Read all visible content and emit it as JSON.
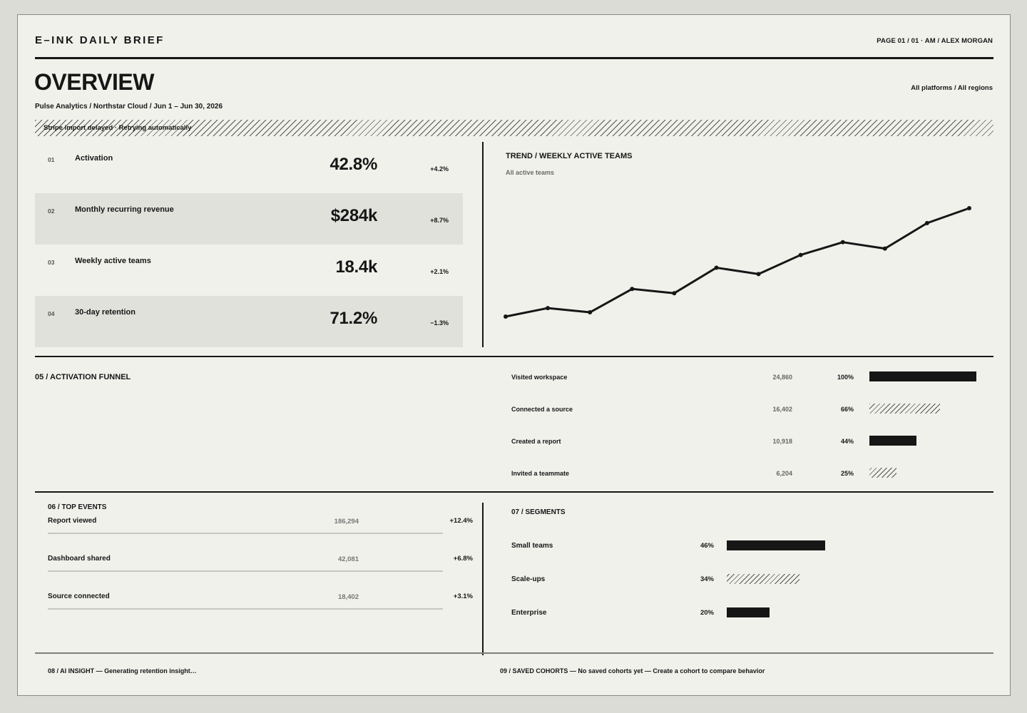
{
  "header": {
    "brand": "E–INK DAILY BRIEF",
    "page_meta": "PAGE 01 / 01 · AM / ALEX MORGAN",
    "title": "OVERVIEW",
    "subtitle": "Pulse Analytics / Northstar Cloud / Jun 1 – Jun 30, 2026",
    "scope": "All platforms / All regions"
  },
  "alert": {
    "text": "Stripe import delayed · Retrying automatically"
  },
  "kpis": [
    {
      "index": "01",
      "name": "Activation",
      "value": "42.8%",
      "delta": "+4.2%"
    },
    {
      "index": "02",
      "name": "Monthly recurring revenue",
      "value": "$284k",
      "delta": "+8.7%"
    },
    {
      "index": "03",
      "name": "Weekly active teams",
      "value": "18.4k",
      "delta": "+2.1%"
    },
    {
      "index": "04",
      "name": "30-day retention",
      "value": "71.2%",
      "delta": "−1.3%"
    }
  ],
  "trend": {
    "title": "TREND / WEEKLY ACTIVE TEAMS",
    "subtitle": "All active teams",
    "values": [
      0,
      2,
      1,
      6.5,
      5.5,
      11.5,
      10,
      14.5,
      17.5,
      16,
      22,
      25.5
    ]
  },
  "funnel": {
    "title": "05 / ACTIVATION FUNNEL",
    "steps": [
      {
        "label": "Visited workspace",
        "count": "24,860",
        "pct": "100%",
        "fraction": 1.0,
        "style": "solid"
      },
      {
        "label": "Connected a source",
        "count": "16,402",
        "pct": "66%",
        "fraction": 0.66,
        "style": "hatch"
      },
      {
        "label": "Created a report",
        "count": "10,918",
        "pct": "44%",
        "fraction": 0.44,
        "style": "solid"
      },
      {
        "label": "Invited a teammate",
        "count": "6,204",
        "pct": "25%",
        "fraction": 0.25,
        "style": "hatch"
      }
    ]
  },
  "events": {
    "title": "06 / TOP EVENTS",
    "rows": [
      {
        "name": "Report viewed",
        "count": "186,294",
        "delta": "+12.4%"
      },
      {
        "name": "Dashboard shared",
        "count": "42,081",
        "delta": "+6.8%"
      },
      {
        "name": "Source connected",
        "count": "18,402",
        "delta": "+3.1%"
      }
    ]
  },
  "segments": {
    "title": "07 / SEGMENTS",
    "rows": [
      {
        "label": "Small teams",
        "pct": "46%",
        "fraction": 0.46,
        "style": "solid"
      },
      {
        "label": "Scale-ups",
        "pct": "34%",
        "fraction": 0.34,
        "style": "hatch"
      },
      {
        "label": "Enterprise",
        "pct": "20%",
        "fraction": 0.2,
        "style": "solid"
      }
    ]
  },
  "footer": {
    "insight": "08 / AI INSIGHT — Generating retention insight…",
    "cohorts": "09 / SAVED COHORTS — No saved cohorts yet — Create a cohort to compare behavior"
  },
  "colors": {
    "ink": "#161616",
    "paper": "#f1f1ec",
    "shade": "#e1e1dc",
    "background": "#dcdcd7"
  }
}
